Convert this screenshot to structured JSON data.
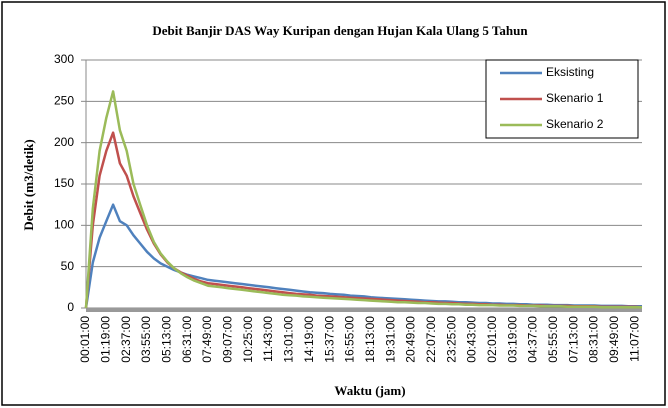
{
  "chart_data": {
    "type": "line",
    "title": "Debit Banjir  DAS Way Kuripan dengan Hujan Kala Ulang 5 Tahun",
    "x_label": "Waktu (jam)",
    "y_label": "Debit (m3/detik)",
    "categories": [
      "00:01:00",
      null,
      null,
      "01:19:00",
      null,
      null,
      "02:37:00",
      null,
      null,
      "03:55:00",
      null,
      null,
      "05:13:00",
      null,
      null,
      "06:31:00",
      null,
      null,
      "07:49:00",
      null,
      null,
      "09:07:00",
      null,
      null,
      "10:25:00",
      null,
      null,
      "11:43:00",
      null,
      null,
      "13:01:00",
      null,
      null,
      "14:19:00",
      null,
      null,
      "15:37:00",
      null,
      null,
      "16:55:00",
      null,
      null,
      "18:13:00",
      null,
      null,
      "19:31:00",
      null,
      null,
      "20:49:00",
      null,
      null,
      "22:07:00",
      null,
      null,
      "23:25:00",
      null,
      null,
      "00:43:00",
      null,
      null,
      "02:01:00",
      null,
      null,
      "03:19:00",
      null,
      null,
      "04:37:00",
      null,
      null,
      "05:55:00",
      null,
      null,
      "07:13:00",
      null,
      null,
      "08:31:00",
      null,
      null,
      "09:49:00",
      null,
      null,
      "11:07:00",
      null
    ],
    "series": [
      {
        "name": "Eksisting",
        "color": "#4f81bd",
        "values": [
          0,
          55,
          85,
          105,
          125,
          105,
          100,
          88,
          78,
          68,
          60,
          54,
          50,
          46,
          43,
          40,
          38,
          36,
          34,
          33,
          32,
          31,
          30,
          29,
          28,
          27,
          26,
          25,
          24,
          23,
          22,
          21,
          20,
          19,
          18.5,
          18,
          17,
          16.5,
          16,
          15,
          14.5,
          14,
          13,
          12.5,
          12,
          11.5,
          11,
          10.5,
          10,
          9.5,
          9,
          8.5,
          8,
          8,
          7.5,
          7,
          7,
          6.5,
          6,
          6,
          5.5,
          5.5,
          5,
          5,
          4.5,
          4.5,
          4,
          4,
          4,
          3.5,
          3.5,
          3.5,
          3,
          3,
          3,
          3,
          2.5,
          2.5,
          2.5,
          2.5,
          2,
          2,
          2
        ]
      },
      {
        "name": "Skenario 1",
        "color": "#c0504d",
        "values": [
          0,
          100,
          160,
          190,
          212,
          175,
          160,
          135,
          115,
          95,
          78,
          65,
          55,
          48,
          43,
          39,
          35,
          32,
          30,
          29,
          28,
          27,
          26,
          25,
          24,
          23,
          22,
          21,
          20,
          19,
          18,
          17,
          16.5,
          16,
          15,
          14.5,
          14,
          13.5,
          13,
          12.5,
          12,
          11.5,
          11,
          10.5,
          10,
          9.5,
          9,
          8.5,
          8,
          7.5,
          7,
          7,
          6.5,
          6,
          6,
          5.5,
          5,
          5,
          4.5,
          4.5,
          4,
          4,
          3.5,
          3.5,
          3.5,
          3,
          3,
          3,
          2.5,
          2.5,
          2.5,
          2.5,
          2,
          2,
          2,
          2,
          1.5,
          1.5,
          1.5,
          1.5,
          1.5,
          1.5,
          1
        ]
      },
      {
        "name": "Skenario 2",
        "color": "#9bbb59",
        "values": [
          0,
          120,
          190,
          230,
          262,
          215,
          190,
          150,
          125,
          100,
          80,
          66,
          56,
          48,
          42,
          37,
          33,
          30,
          27,
          26,
          25,
          24,
          23,
          22,
          21,
          20,
          19,
          18,
          17,
          16,
          15.5,
          15,
          14,
          13.5,
          13,
          12.5,
          12,
          11.5,
          11,
          10.5,
          10,
          9.5,
          9,
          8.5,
          8,
          7.5,
          7,
          7,
          6.5,
          6,
          6,
          5.5,
          5,
          5,
          4.5,
          4.5,
          4,
          4,
          3.5,
          3.5,
          3.5,
          3,
          3,
          3,
          2.5,
          2.5,
          2.5,
          2,
          2,
          2,
          2,
          1.5,
          1.5,
          1.5,
          1.5,
          1.5,
          1,
          1,
          1,
          1,
          1,
          1,
          1
        ]
      }
    ],
    "ylim": [
      0,
      300
    ],
    "yticks": [
      0,
      50,
      100,
      150,
      200,
      250,
      300
    ],
    "grid": true,
    "legend": "top-right"
  }
}
